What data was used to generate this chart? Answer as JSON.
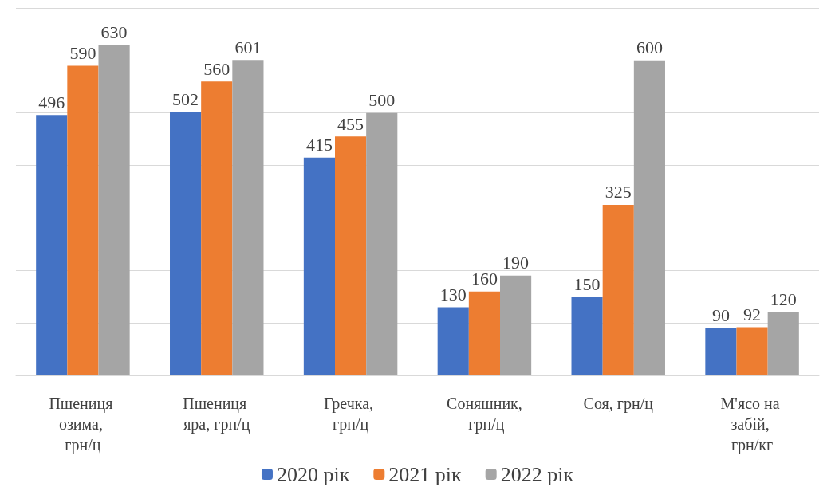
{
  "chart_data": {
    "type": "bar",
    "categories": [
      "Пшениця озима, грн/ц",
      "Пшениця яра, грн/ц",
      "Гречка, грн/ц",
      "Соняшник, грн/ц",
      "Соя, грн/ц",
      "М'ясо на забій, грн/кг"
    ],
    "series": [
      {
        "name": "2020 рік",
        "color": "#4472c4",
        "values": [
          496,
          502,
          415,
          130,
          150,
          90
        ]
      },
      {
        "name": "2021 рік",
        "color": "#ed7d31",
        "values": [
          590,
          560,
          455,
          160,
          325,
          92
        ]
      },
      {
        "name": "2022 рік",
        "color": "#a5a5a5",
        "values": [
          630,
          601,
          500,
          190,
          600,
          120
        ]
      }
    ],
    "ylim": [
      0,
      700
    ],
    "yticks": [
      {
        "value": 0,
        "label": null
      },
      {
        "value": 100,
        "label": null
      },
      {
        "value": 200,
        "label": null
      },
      {
        "value": 300,
        "label": null
      },
      {
        "value": 400,
        "label": null
      },
      {
        "value": 500,
        "label": null
      },
      {
        "value": 600,
        "label": null
      },
      {
        "value": 700,
        "label": null
      }
    ],
    "tick_labels": "x",
    "grid": "y",
    "data_labels": true,
    "legend": "bottom"
  }
}
